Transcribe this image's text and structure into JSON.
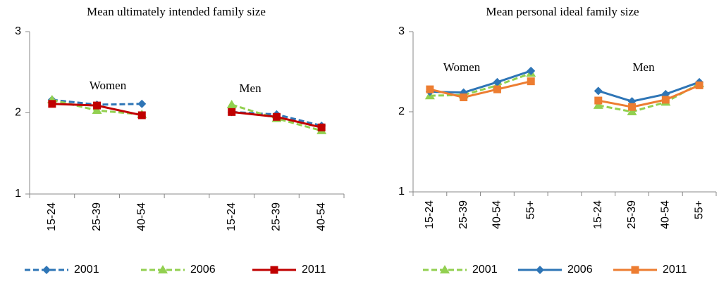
{
  "chart_data": [
    {
      "type": "line",
      "title": "Mean ultimately intended family size",
      "annotations": [
        "Women",
        "Men"
      ],
      "categories": [
        "15-24",
        "25-39",
        "40-54",
        null,
        "15-24",
        "25-39",
        "40-54"
      ],
      "ylim": [
        1,
        3
      ],
      "yticks": [
        1,
        2,
        3
      ],
      "series": [
        {
          "name": "2001",
          "color": "#2e75b6",
          "marker": "diamond",
          "dash": true,
          "values": [
            2.16,
            2.1,
            2.11,
            null,
            2.01,
            1.98,
            1.84
          ]
        },
        {
          "name": "2006",
          "color": "#92d050",
          "marker": "triangle",
          "dash": true,
          "values": [
            2.16,
            2.03,
            1.98,
            null,
            2.1,
            1.93,
            1.78
          ]
        },
        {
          "name": "2011",
          "color": "#c00000",
          "marker": "square",
          "dash": false,
          "values": [
            2.11,
            2.09,
            1.97,
            null,
            2.01,
            1.95,
            1.82
          ]
        }
      ]
    },
    {
      "type": "line",
      "title": "Mean personal ideal family size",
      "annotations": [
        "Women",
        "Men"
      ],
      "categories": [
        "15-24",
        "25-39",
        "40-54",
        "55+",
        null,
        "15-24",
        "25-39",
        "40-54",
        "55+"
      ],
      "ylim": [
        1,
        3
      ],
      "yticks": [
        1,
        2,
        3
      ],
      "series": [
        {
          "name": "2001",
          "color": "#92d050",
          "marker": "triangle",
          "dash": true,
          "values": [
            2.2,
            2.21,
            2.33,
            2.48,
            null,
            2.08,
            2.0,
            2.12,
            2.35
          ]
        },
        {
          "name": "2006",
          "color": "#2e75b6",
          "marker": "diamond",
          "dash": false,
          "values": [
            2.25,
            2.24,
            2.37,
            2.51,
            null,
            2.26,
            2.13,
            2.22,
            2.37
          ]
        },
        {
          "name": "2011",
          "color": "#ed7d31",
          "marker": "square",
          "dash": false,
          "values": [
            2.28,
            2.18,
            2.28,
            2.38,
            null,
            2.14,
            2.06,
            2.15,
            2.33
          ]
        }
      ]
    }
  ]
}
